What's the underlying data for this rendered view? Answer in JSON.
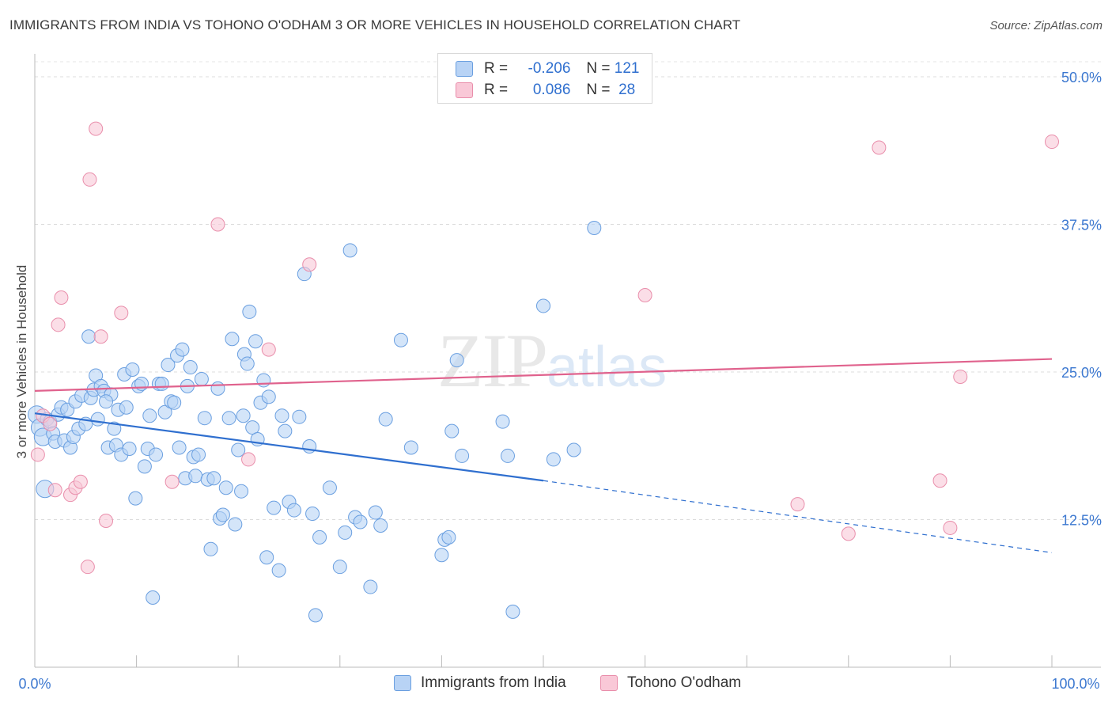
{
  "header": {
    "title": "IMMIGRANTS FROM INDIA VS TOHONO O'ODHAM 3 OR MORE VEHICLES IN HOUSEHOLD CORRELATION CHART",
    "source": "Source: ZipAtlas.com"
  },
  "watermark": {
    "zip": "ZIP",
    "atlas": "atlas"
  },
  "legend": {
    "r_label": "R =",
    "n_label": "N =",
    "rows": [
      {
        "r": "-0.206",
        "n": "121",
        "color": "#b8d3f5",
        "border": "#6a9fe0"
      },
      {
        "r": "0.086",
        "n": "28",
        "color": "#f9c8d7",
        "border": "#e98eab"
      }
    ]
  },
  "bottom_legend": [
    {
      "label": "Immigrants from India",
      "color": "#b8d3f5",
      "border": "#6a9fe0"
    },
    {
      "label": "Tohono O'odham",
      "color": "#f9c8d7",
      "border": "#e98eab"
    }
  ],
  "chart_data": {
    "type": "scatter",
    "ylabel": "3 or more Vehicles in Household",
    "xlim": [
      0,
      100
    ],
    "ylim": [
      0,
      52.5
    ],
    "x_tick_labels": [
      "0.0%",
      "100.0%"
    ],
    "y_ticks": [
      12.5,
      25.0,
      37.5,
      50.0
    ],
    "y_tick_labels": [
      "12.5%",
      "25.0%",
      "37.5%",
      "50.0%"
    ],
    "grid": "horizontal dashed",
    "series": [
      {
        "name": "Immigrants from India",
        "color": "#6a9fe0",
        "fill": "#b8d3f5",
        "trend": {
          "x0": 0,
          "y0": 21.5,
          "x1": 50,
          "y1": 15.8,
          "dash_to_x": 100,
          "dash_to_y": 9.7
        },
        "points": [
          [
            0.2,
            21.4
          ],
          [
            0.5,
            20.3
          ],
          [
            0.8,
            19.5
          ],
          [
            1.0,
            15.1
          ],
          [
            1.2,
            21.0
          ],
          [
            1.5,
            20.8
          ],
          [
            1.8,
            19.8
          ],
          [
            2.0,
            19.1
          ],
          [
            2.3,
            21.4
          ],
          [
            2.6,
            22.0
          ],
          [
            2.9,
            19.2
          ],
          [
            3.2,
            21.8
          ],
          [
            3.5,
            18.6
          ],
          [
            3.8,
            19.5
          ],
          [
            4.0,
            22.5
          ],
          [
            4.3,
            20.2
          ],
          [
            4.6,
            23.0
          ],
          [
            5.0,
            20.6
          ],
          [
            5.3,
            28.0
          ],
          [
            5.5,
            22.8
          ],
          [
            5.8,
            23.5
          ],
          [
            6.0,
            24.7
          ],
          [
            6.2,
            21.0
          ],
          [
            6.5,
            23.8
          ],
          [
            6.8,
            23.4
          ],
          [
            7.2,
            18.6
          ],
          [
            7.5,
            23.1
          ],
          [
            7.8,
            20.2
          ],
          [
            8.0,
            18.8
          ],
          [
            8.2,
            21.8
          ],
          [
            8.5,
            18.0
          ],
          [
            8.8,
            24.8
          ],
          [
            9.0,
            22.0
          ],
          [
            9.3,
            18.5
          ],
          [
            9.6,
            25.2
          ],
          [
            9.9,
            14.3
          ],
          [
            10.2,
            23.8
          ],
          [
            10.5,
            24.0
          ],
          [
            10.8,
            17.0
          ],
          [
            11.1,
            18.5
          ],
          [
            11.3,
            21.3
          ],
          [
            11.6,
            5.9
          ],
          [
            11.9,
            18.0
          ],
          [
            12.2,
            24.0
          ],
          [
            12.5,
            24.0
          ],
          [
            12.8,
            21.6
          ],
          [
            13.1,
            25.6
          ],
          [
            13.4,
            22.5
          ],
          [
            13.7,
            22.4
          ],
          [
            14.0,
            26.4
          ],
          [
            14.2,
            18.6
          ],
          [
            14.5,
            26.9
          ],
          [
            14.8,
            16.0
          ],
          [
            15.0,
            23.8
          ],
          [
            15.3,
            25.4
          ],
          [
            15.6,
            17.8
          ],
          [
            15.8,
            16.2
          ],
          [
            16.1,
            18.0
          ],
          [
            16.4,
            24.4
          ],
          [
            16.7,
            21.1
          ],
          [
            17.0,
            15.9
          ],
          [
            17.3,
            10.0
          ],
          [
            17.6,
            16.0
          ],
          [
            18.0,
            23.6
          ],
          [
            18.2,
            12.6
          ],
          [
            18.5,
            12.9
          ],
          [
            18.8,
            15.2
          ],
          [
            19.1,
            21.1
          ],
          [
            19.4,
            27.8
          ],
          [
            19.7,
            12.1
          ],
          [
            20.0,
            18.4
          ],
          [
            20.3,
            14.9
          ],
          [
            20.6,
            26.5
          ],
          [
            20.9,
            25.7
          ],
          [
            21.1,
            30.1
          ],
          [
            21.4,
            20.3
          ],
          [
            21.7,
            27.6
          ],
          [
            21.9,
            19.3
          ],
          [
            22.2,
            22.4
          ],
          [
            22.5,
            24.3
          ],
          [
            22.8,
            9.3
          ],
          [
            23.0,
            22.9
          ],
          [
            23.5,
            13.5
          ],
          [
            24.0,
            8.2
          ],
          [
            24.3,
            21.3
          ],
          [
            24.6,
            20.0
          ],
          [
            25.0,
            14.0
          ],
          [
            25.5,
            13.3
          ],
          [
            26.0,
            21.2
          ],
          [
            26.5,
            33.3
          ],
          [
            27.0,
            18.7
          ],
          [
            27.3,
            13.0
          ],
          [
            27.6,
            4.4
          ],
          [
            28.0,
            11.0
          ],
          [
            29.0,
            15.2
          ],
          [
            30.0,
            8.5
          ],
          [
            30.5,
            11.4
          ],
          [
            31.0,
            35.3
          ],
          [
            31.5,
            12.7
          ],
          [
            32.0,
            12.3
          ],
          [
            33.0,
            6.8
          ],
          [
            33.5,
            13.1
          ],
          [
            34.0,
            12.0
          ],
          [
            34.5,
            21.0
          ],
          [
            36.0,
            27.7
          ],
          [
            37.0,
            18.6
          ],
          [
            40.0,
            9.5
          ],
          [
            40.3,
            10.8
          ],
          [
            40.7,
            11.0
          ],
          [
            41.0,
            20.0
          ],
          [
            41.5,
            26.0
          ],
          [
            42.0,
            17.9
          ],
          [
            46.0,
            20.8
          ],
          [
            46.5,
            17.9
          ],
          [
            47.0,
            4.7
          ],
          [
            50.0,
            30.6
          ],
          [
            51.0,
            17.6
          ],
          [
            53.0,
            18.4
          ],
          [
            55.0,
            37.2
          ],
          [
            20.5,
            21.3
          ],
          [
            7.0,
            22.5
          ]
        ]
      },
      {
        "name": "Tohono O'odham",
        "color": "#e98eab",
        "fill": "#f9c8d7",
        "trend": {
          "x0": 0,
          "y0": 23.4,
          "x1": 100,
          "y1": 26.1
        },
        "points": [
          [
            0.3,
            18.0
          ],
          [
            0.8,
            21.3
          ],
          [
            1.5,
            20.6
          ],
          [
            2.0,
            15.0
          ],
          [
            2.3,
            29.0
          ],
          [
            2.6,
            31.3
          ],
          [
            3.5,
            14.6
          ],
          [
            4.0,
            15.2
          ],
          [
            4.5,
            15.7
          ],
          [
            5.2,
            8.5
          ],
          [
            5.4,
            41.3
          ],
          [
            6.0,
            45.6
          ],
          [
            6.5,
            28.0
          ],
          [
            7.0,
            12.4
          ],
          [
            8.5,
            30.0
          ],
          [
            13.5,
            15.7
          ],
          [
            18.0,
            37.5
          ],
          [
            21.0,
            17.6
          ],
          [
            23.0,
            26.9
          ],
          [
            27.0,
            34.1
          ],
          [
            60.0,
            31.5
          ],
          [
            75.0,
            13.8
          ],
          [
            80.0,
            11.3
          ],
          [
            83.0,
            44.0
          ],
          [
            89.0,
            15.8
          ],
          [
            90.0,
            11.8
          ],
          [
            91.0,
            24.6
          ],
          [
            100.0,
            44.5
          ]
        ]
      }
    ]
  }
}
